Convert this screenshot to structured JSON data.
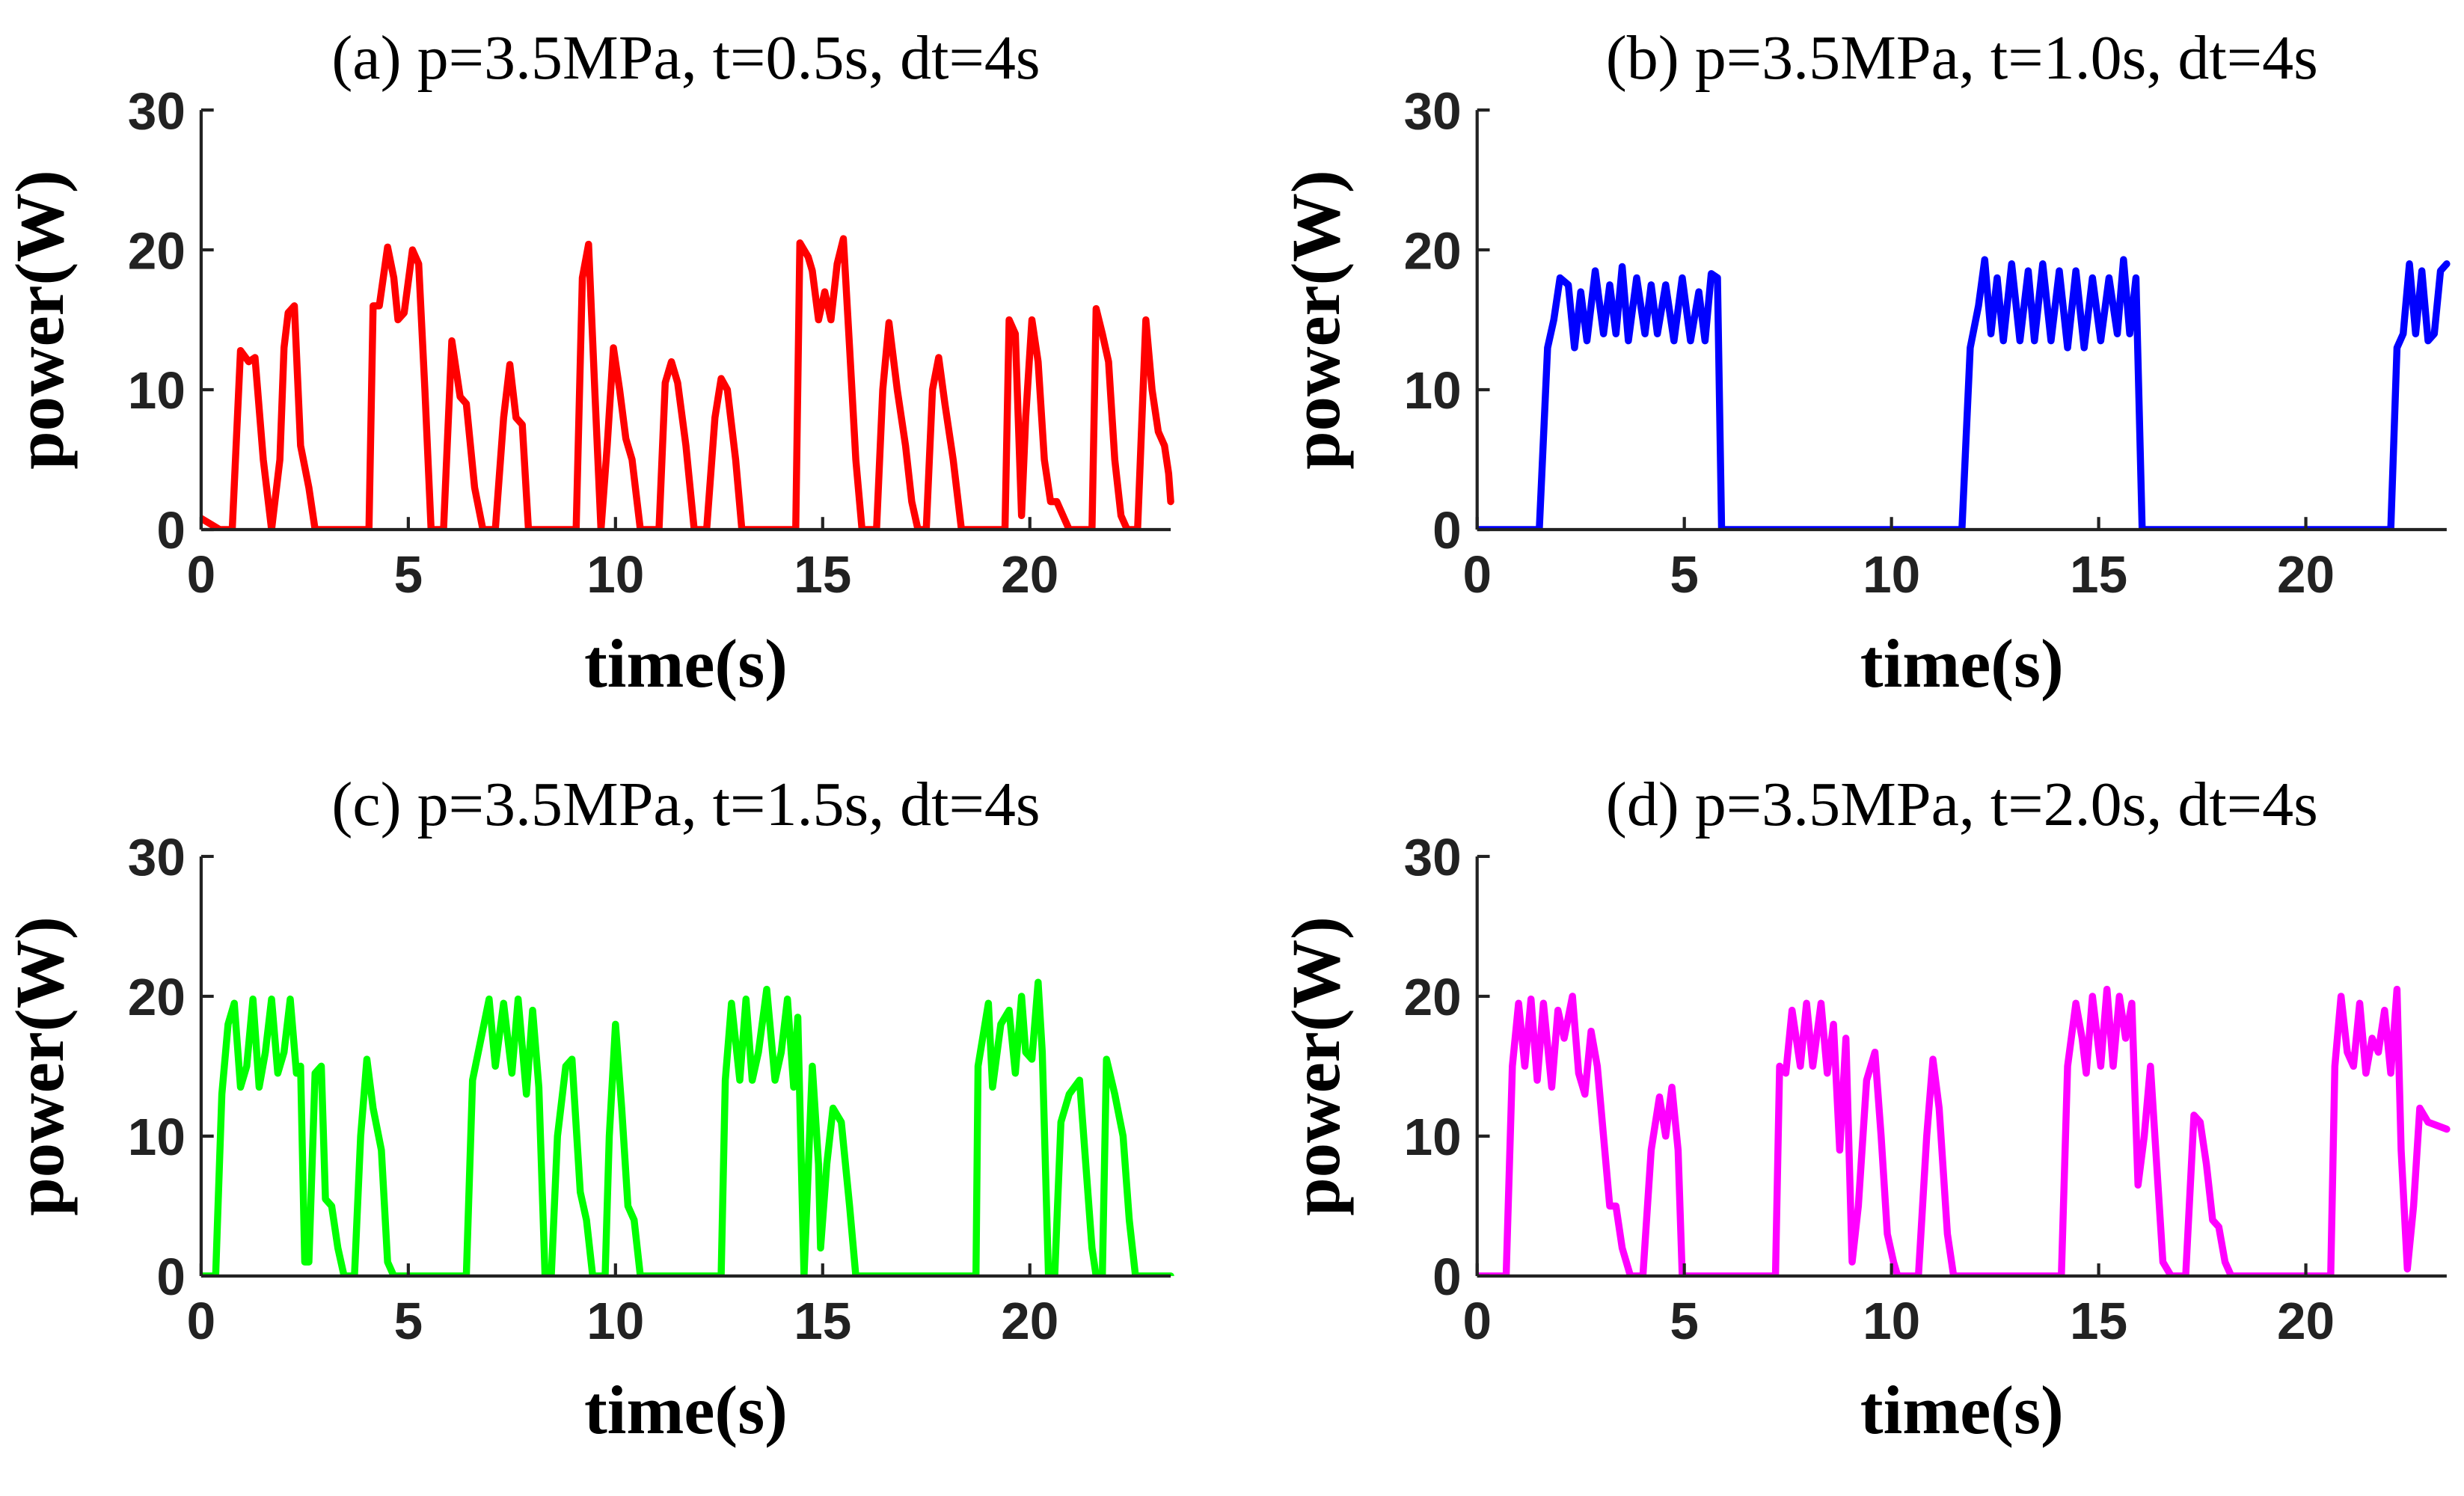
{
  "chart_data": [
    {
      "type": "line",
      "title": "(a) p=3.5MPa, t=0.5s, dt=4s",
      "xlabel": "time(s)",
      "ylabel": "power(W)",
      "xlim": [
        0,
        23.4
      ],
      "ylim": [
        0,
        30
      ],
      "xticks": [
        0,
        5,
        10,
        15,
        20
      ],
      "yticks": [
        0,
        10,
        20,
        30
      ],
      "x": [
        0,
        0.45,
        0.75,
        0.95,
        1.15,
        1.3,
        1.5,
        1.7,
        1.9,
        2.0,
        2.1,
        2.25,
        2.4,
        2.6,
        2.75,
        4.05,
        4.15,
        4.3,
        4.5,
        4.65,
        4.75,
        4.9,
        5.1,
        5.25,
        5.4,
        5.55,
        5.85,
        6.05,
        6.25,
        6.4,
        6.6,
        6.8,
        7.1,
        7.3,
        7.45,
        7.6,
        7.75,
        7.9,
        9.05,
        9.2,
        9.35,
        9.5,
        9.65,
        9.8,
        9.95,
        10.1,
        10.25,
        10.4,
        10.6,
        11.05,
        11.2,
        11.35,
        11.5,
        11.7,
        11.9,
        12.2,
        12.4,
        12.55,
        12.7,
        12.9,
        13.05,
        14.35,
        14.45,
        14.65,
        14.75,
        14.9,
        15.05,
        15.2,
        15.35,
        15.5,
        15.65,
        15.8,
        15.95,
        16.3,
        16.45,
        16.6,
        16.8,
        17.0,
        17.15,
        17.3,
        17.5,
        17.65,
        17.8,
        17.95,
        18.15,
        18.35,
        19.4,
        19.5,
        19.65,
        19.8,
        19.9,
        20.05,
        20.2,
        20.35,
        20.5,
        20.65,
        20.8,
        20.95,
        21.5,
        21.6,
        21.75,
        21.9,
        22.05,
        22.2,
        22.35,
        22.6,
        22.8,
        22.95,
        23.1,
        23.25,
        23.35,
        23.4
      ],
      "series": [
        {
          "color": "#ff0000",
          "values": [
            0.8,
            0,
            0,
            12.8,
            12,
            12.3,
            5,
            0,
            5,
            13,
            15.5,
            16,
            6,
            3,
            0,
            0,
            16,
            16,
            20.2,
            18,
            15,
            15.5,
            20,
            19,
            10,
            0,
            0,
            13.5,
            9.5,
            9,
            3,
            0,
            0,
            8,
            11.8,
            8,
            7.5,
            0,
            0,
            18,
            20.4,
            10,
            0,
            6,
            13,
            10,
            6.5,
            5,
            0,
            0,
            10.5,
            12,
            10.5,
            6,
            0,
            0,
            8,
            10.8,
            10,
            5,
            0,
            0,
            20.5,
            19.5,
            18.5,
            15,
            17,
            15,
            19,
            20.8,
            13,
            5,
            0,
            0,
            10,
            14.8,
            10,
            6,
            2,
            0,
            0,
            10,
            12.3,
            9,
            5,
            0,
            0,
            15,
            14,
            1,
            8,
            15,
            12,
            5,
            2,
            2,
            1,
            0,
            0,
            15.8,
            14,
            12,
            5,
            1,
            0,
            0,
            15,
            10,
            7,
            6,
            4,
            2
          ]
        }
      ]
    },
    {
      "type": "line",
      "title": "(b) p=3.5MPa, t=1.0s, dt=4s",
      "xlabel": "time(s)",
      "ylabel": "power(W)",
      "xlim": [
        0,
        23.4
      ],
      "ylim": [
        0,
        30
      ],
      "xticks": [
        0,
        5,
        10,
        15,
        20
      ],
      "yticks": [
        0,
        10,
        20,
        30
      ],
      "x": [
        0,
        1.5,
        1.7,
        1.85,
        2.0,
        2.2,
        2.35,
        2.5,
        2.65,
        2.85,
        3.05,
        3.2,
        3.35,
        3.5,
        3.65,
        3.85,
        4.05,
        4.2,
        4.35,
        4.55,
        4.75,
        4.95,
        5.15,
        5.35,
        5.5,
        5.65,
        5.8,
        5.9,
        11.7,
        11.9,
        12.1,
        12.25,
        12.4,
        12.55,
        12.7,
        12.9,
        13.1,
        13.3,
        13.45,
        13.65,
        13.85,
        14.05,
        14.25,
        14.45,
        14.65,
        14.85,
        15.05,
        15.25,
        15.45,
        15.6,
        15.75,
        15.9,
        16.05,
        22.05,
        22.2,
        22.35,
        22.5,
        22.65,
        22.8,
        22.95,
        23.1,
        23.25,
        23.4
      ],
      "series": [
        {
          "color": "#0000ff",
          "values": [
            0,
            0,
            13,
            15,
            18,
            17.5,
            13,
            17,
            13.5,
            18.5,
            14,
            17.5,
            14,
            18.8,
            13.5,
            18,
            14,
            17.5,
            14,
            17.5,
            13.5,
            18,
            13.5,
            17,
            13.5,
            18.3,
            18,
            0,
            0,
            13,
            16,
            19.3,
            14,
            18,
            13.5,
            19,
            13.5,
            18.5,
            13.5,
            19,
            13.5,
            18.5,
            13,
            18.5,
            13,
            18,
            13.5,
            18,
            14,
            19.3,
            14,
            18,
            0,
            0,
            13,
            14,
            19,
            14,
            18.5,
            13.5,
            14,
            18.5,
            19
          ]
        }
      ]
    },
    {
      "type": "line",
      "title": "(c) p=3.5MPa, t=1.5s, dt=4s",
      "xlabel": "time(s)",
      "ylabel": "power(W)",
      "xlim": [
        0,
        23.4
      ],
      "ylim": [
        0,
        30
      ],
      "xticks": [
        0,
        5,
        10,
        15,
        20
      ],
      "yticks": [
        0,
        10,
        20,
        30
      ],
      "x": [
        0,
        0.35,
        0.5,
        0.65,
        0.8,
        0.95,
        1.1,
        1.25,
        1.4,
        1.55,
        1.7,
        1.85,
        2.0,
        2.15,
        2.3,
        2.4,
        2.5,
        2.6,
        2.75,
        2.9,
        3.0,
        3.15,
        3.3,
        3.45,
        3.7,
        3.85,
        4.0,
        4.15,
        4.35,
        4.5,
        4.65,
        6.4,
        6.55,
        6.95,
        7.1,
        7.3,
        7.5,
        7.65,
        7.85,
        8.0,
        8.15,
        8.3,
        8.45,
        8.6,
        8.8,
        8.95,
        9.15,
        9.3,
        9.45,
        9.75,
        9.85,
        10.0,
        10.15,
        10.3,
        10.45,
        10.6,
        12.55,
        12.65,
        12.8,
        13.0,
        13.15,
        13.3,
        13.45,
        13.65,
        13.85,
        14.0,
        14.15,
        14.3,
        14.4,
        14.55,
        14.75,
        14.9,
        14.95,
        15.1,
        15.25,
        15.45,
        15.65,
        15.8,
        18.7,
        18.75,
        19.0,
        19.1,
        19.3,
        19.5,
        19.65,
        19.8,
        19.9,
        20.05,
        20.2,
        20.3,
        20.45,
        20.6,
        20.75,
        20.95,
        21.2,
        21.35,
        21.5,
        21.6,
        21.75,
        21.85,
        22.05,
        22.25,
        22.4,
        22.55,
        23.4
      ],
      "series": [
        {
          "color": "#00ff00",
          "values": [
            0,
            0,
            13,
            18,
            19.5,
            13.5,
            15,
            19.8,
            13.5,
            16,
            19.8,
            14.5,
            16,
            19.8,
            14.5,
            15,
            1,
            1,
            14.5,
            15,
            5.5,
            5,
            2,
            0,
            0,
            10,
            15.5,
            12,
            9,
            1,
            0,
            0,
            14,
            19.8,
            15,
            19.5,
            14.5,
            19.8,
            13,
            19,
            13.5,
            0,
            0,
            10,
            15,
            15.5,
            6,
            4,
            0,
            0,
            10,
            18,
            12,
            5,
            4,
            0,
            0,
            14,
            19.5,
            14,
            19.8,
            14,
            16,
            20.5,
            14,
            16,
            19.8,
            13.5,
            18.5,
            0,
            15,
            8,
            2,
            8,
            12,
            11,
            5,
            0,
            0,
            15,
            19.5,
            13.5,
            18,
            19,
            14.5,
            20,
            16,
            15.5,
            21,
            16,
            0,
            0,
            11,
            13,
            14,
            8,
            2,
            0,
            0,
            15.5,
            13,
            10,
            4,
            0,
            0
          ]
        }
      ]
    },
    {
      "type": "line",
      "title": "(d) p=3.5MPa, t=2.0s, dt=4s",
      "xlabel": "time(s)",
      "ylabel": "power(W)",
      "xlim": [
        0,
        23.4
      ],
      "ylim": [
        0,
        30
      ],
      "xticks": [
        0,
        5,
        10,
        15,
        20
      ],
      "yticks": [
        0,
        10,
        20,
        30
      ],
      "x": [
        0,
        0.7,
        0.85,
        1.0,
        1.15,
        1.3,
        1.45,
        1.6,
        1.8,
        1.95,
        2.1,
        2.3,
        2.45,
        2.6,
        2.75,
        2.9,
        3.05,
        3.2,
        3.35,
        3.5,
        3.7,
        4.0,
        4.2,
        4.4,
        4.55,
        4.7,
        4.85,
        4.95,
        7.2,
        7.3,
        7.45,
        7.6,
        7.8,
        7.95,
        8.1,
        8.3,
        8.45,
        8.6,
        8.75,
        8.9,
        9.05,
        9.2,
        9.4,
        9.6,
        9.75,
        9.9,
        10.05,
        10.15,
        10.65,
        10.85,
        11.0,
        11.15,
        11.35,
        11.5,
        14.1,
        14.25,
        14.45,
        14.6,
        14.7,
        14.85,
        15.05,
        15.2,
        15.35,
        15.5,
        15.65,
        15.8,
        15.95,
        16.1,
        16.25,
        16.4,
        16.55,
        16.75,
        17.1,
        17.3,
        17.45,
        17.6,
        17.75,
        17.9,
        18.05,
        18.2,
        20.6,
        20.7,
        20.85,
        21.0,
        21.15,
        21.3,
        21.45,
        21.6,
        21.75,
        21.9,
        22.05,
        22.2,
        22.3,
        22.45,
        22.6,
        22.75,
        22.95,
        23.4
      ],
      "series": [
        {
          "color": "#ff00ff",
          "values": [
            0,
            0,
            15,
            19.5,
            15,
            19.8,
            14,
            19.5,
            13.5,
            19,
            17,
            20,
            14.5,
            13,
            17.5,
            15,
            10,
            5,
            5,
            2,
            0,
            0,
            9,
            12.8,
            10,
            13.5,
            9,
            0,
            0,
            15,
            14.5,
            19,
            15,
            19.5,
            15,
            19.5,
            14.5,
            18,
            9,
            17,
            1,
            5,
            14,
            16,
            10,
            3,
            1,
            0,
            0,
            10,
            15.5,
            12,
            3,
            0,
            0,
            15,
            19.5,
            17,
            14.5,
            20,
            15,
            20.5,
            15,
            20,
            17,
            19.5,
            6.5,
            10,
            15,
            8,
            1,
            0,
            0,
            11.5,
            11,
            8,
            4,
            3.5,
            1,
            0,
            0,
            15,
            20,
            16,
            15,
            19.5,
            14.5,
            17,
            16,
            19,
            14.5,
            20.5,
            9,
            0.5,
            5,
            12,
            11,
            10.5
          ]
        }
      ]
    }
  ]
}
